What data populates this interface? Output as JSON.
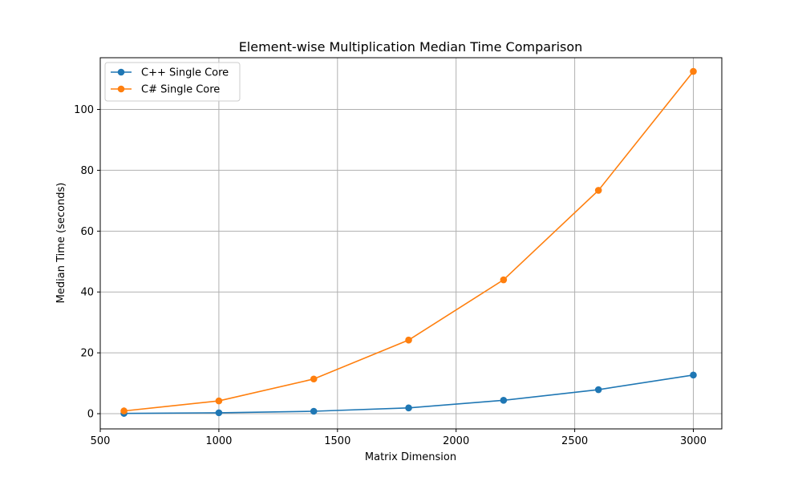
{
  "chart_data": {
    "type": "line",
    "title": "Element-wise Multiplication Median Time Comparison",
    "xlabel": "Matrix Dimension",
    "ylabel": "Median Time (seconds)",
    "xlim": [
      500,
      3120
    ],
    "ylim": [
      -5,
      117
    ],
    "xticks": [
      500,
      1000,
      1500,
      2000,
      2500,
      3000
    ],
    "yticks": [
      0,
      20,
      40,
      60,
      80,
      100
    ],
    "grid": true,
    "legend_position": "top-left",
    "x": [
      600,
      1000,
      1400,
      1800,
      2200,
      2600,
      3000
    ],
    "series": [
      {
        "name": "C++ Single Core",
        "color": "#1f77b4",
        "marker": "circle",
        "values": [
          0.1,
          0.3,
          0.8,
          1.9,
          4.4,
          7.9,
          12.7
        ]
      },
      {
        "name": "C# Single Core",
        "color": "#ff7f0e",
        "marker": "circle",
        "values": [
          0.9,
          4.2,
          11.4,
          24.2,
          44.0,
          73.4,
          112.5
        ]
      }
    ]
  }
}
